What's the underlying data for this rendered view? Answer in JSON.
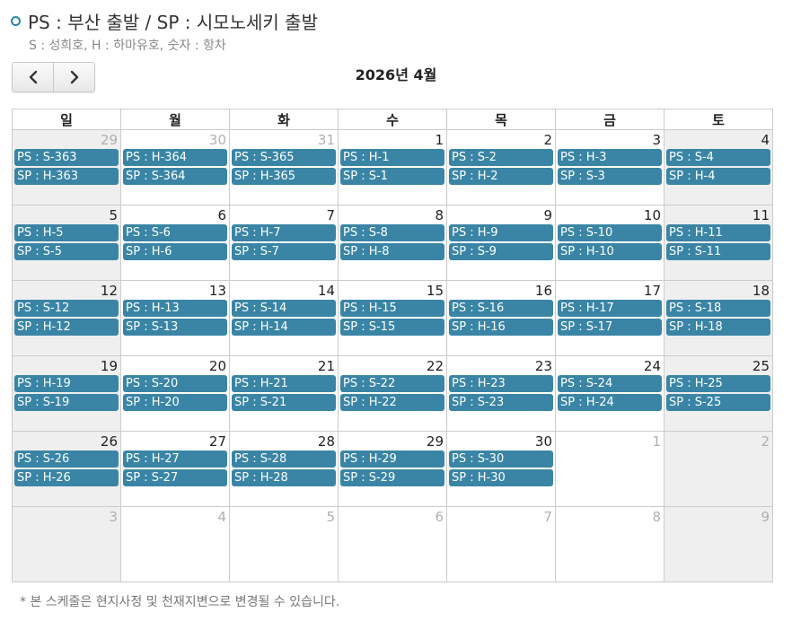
{
  "legend": {
    "title": "PS : 부산 출발 / SP : 시모노세키 출발",
    "subtitle": "S : 성희호, H : 하마유호, 숫자 : 항차"
  },
  "nav": {
    "prev_icon": "chevron-left-icon",
    "next_icon": "chevron-right-icon"
  },
  "month_title": "2026년 4월",
  "weekdays": [
    "일",
    "월",
    "화",
    "수",
    "목",
    "금",
    "토"
  ],
  "accent_color": "#3a85a6",
  "weeks": [
    [
      {
        "day": "29",
        "other": true,
        "events": [
          "PS : S-363",
          "SP : H-363"
        ]
      },
      {
        "day": "30",
        "other": true,
        "events": [
          "PS : H-364",
          "SP : S-364"
        ]
      },
      {
        "day": "31",
        "other": true,
        "events": [
          "PS : S-365",
          "SP : H-365"
        ]
      },
      {
        "day": "1",
        "events": [
          "PS : H-1",
          "SP : S-1"
        ]
      },
      {
        "day": "2",
        "events": [
          "PS : S-2",
          "SP : H-2"
        ]
      },
      {
        "day": "3",
        "events": [
          "PS : H-3",
          "SP : S-3"
        ]
      },
      {
        "day": "4",
        "events": [
          "PS : S-4",
          "SP : H-4"
        ]
      }
    ],
    [
      {
        "day": "5",
        "events": [
          "PS : H-5",
          "SP : S-5"
        ]
      },
      {
        "day": "6",
        "events": [
          "PS : S-6",
          "SP : H-6"
        ]
      },
      {
        "day": "7",
        "events": [
          "PS : H-7",
          "SP : S-7"
        ]
      },
      {
        "day": "8",
        "events": [
          "PS : S-8",
          "SP : H-8"
        ]
      },
      {
        "day": "9",
        "events": [
          "PS : H-9",
          "SP : S-9"
        ]
      },
      {
        "day": "10",
        "events": [
          "PS : S-10",
          "SP : H-10"
        ]
      },
      {
        "day": "11",
        "events": [
          "PS : H-11",
          "SP : S-11"
        ]
      }
    ],
    [
      {
        "day": "12",
        "events": [
          "PS : S-12",
          "SP : H-12"
        ]
      },
      {
        "day": "13",
        "events": [
          "PS : H-13",
          "SP : S-13"
        ]
      },
      {
        "day": "14",
        "events": [
          "PS : S-14",
          "SP : H-14"
        ]
      },
      {
        "day": "15",
        "events": [
          "PS : H-15",
          "SP : S-15"
        ]
      },
      {
        "day": "16",
        "events": [
          "PS : S-16",
          "SP : H-16"
        ]
      },
      {
        "day": "17",
        "events": [
          "PS : H-17",
          "SP : S-17"
        ]
      },
      {
        "day": "18",
        "events": [
          "PS : S-18",
          "SP : H-18"
        ]
      }
    ],
    [
      {
        "day": "19",
        "events": [
          "PS : H-19",
          "SP : S-19"
        ]
      },
      {
        "day": "20",
        "events": [
          "PS : S-20",
          "SP : H-20"
        ]
      },
      {
        "day": "21",
        "events": [
          "PS : H-21",
          "SP : S-21"
        ]
      },
      {
        "day": "22",
        "events": [
          "PS : S-22",
          "SP : H-22"
        ]
      },
      {
        "day": "23",
        "events": [
          "PS : H-23",
          "SP : S-23"
        ]
      },
      {
        "day": "24",
        "events": [
          "PS : S-24",
          "SP : H-24"
        ]
      },
      {
        "day": "25",
        "events": [
          "PS : H-25",
          "SP : S-25"
        ]
      }
    ],
    [
      {
        "day": "26",
        "events": [
          "PS : S-26",
          "SP : H-26"
        ]
      },
      {
        "day": "27",
        "events": [
          "PS : H-27",
          "SP : S-27"
        ]
      },
      {
        "day": "28",
        "events": [
          "PS : S-28",
          "SP : H-28"
        ]
      },
      {
        "day": "29",
        "events": [
          "PS : H-29",
          "SP : S-29"
        ]
      },
      {
        "day": "30",
        "events": [
          "PS : S-30",
          "SP : H-30"
        ]
      },
      {
        "day": "1",
        "other": true,
        "events": []
      },
      {
        "day": "2",
        "other": true,
        "events": []
      }
    ],
    [
      {
        "day": "3",
        "other": true,
        "events": []
      },
      {
        "day": "4",
        "other": true,
        "events": []
      },
      {
        "day": "5",
        "other": true,
        "events": []
      },
      {
        "day": "6",
        "other": true,
        "events": []
      },
      {
        "day": "7",
        "other": true,
        "events": []
      },
      {
        "day": "8",
        "other": true,
        "events": []
      },
      {
        "day": "9",
        "other": true,
        "events": []
      }
    ]
  ],
  "footnote": "* 본 스케줄은 현지사정 및 천재지변으로 변경될 수 있습니다."
}
